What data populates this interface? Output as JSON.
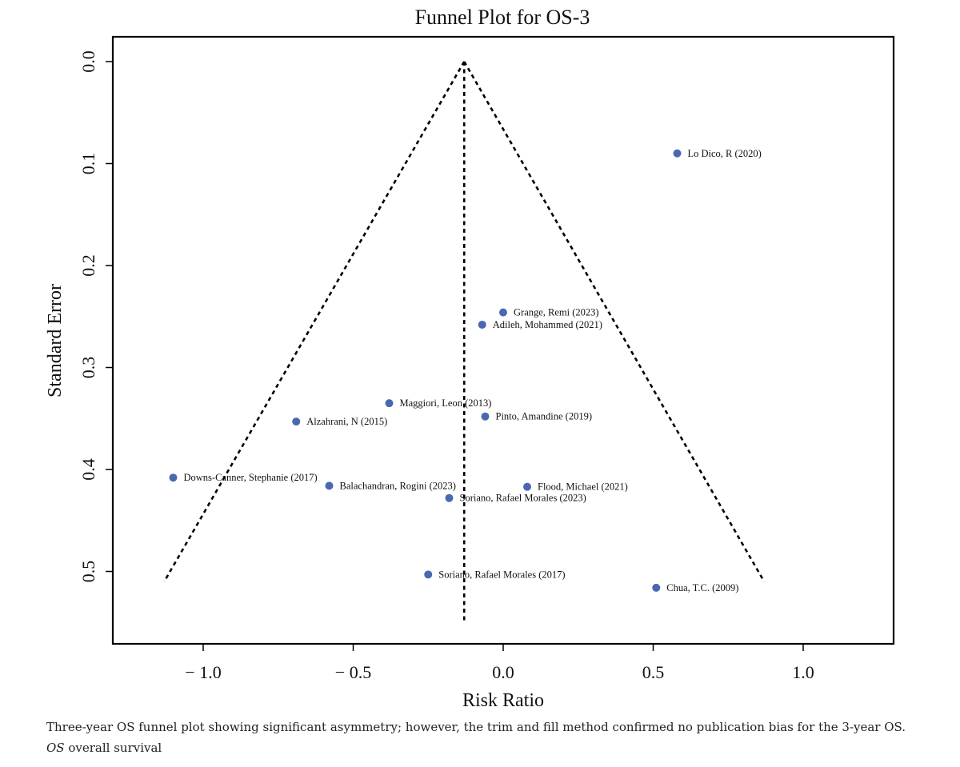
{
  "caption": {
    "text": "Three-year OS funnel plot showing significant asymmetry; however, the trim and fill method confirmed no publication bias for the 3-year OS.",
    "abbr": "OS",
    "abbr_def": "overall survival"
  },
  "chart_data": {
    "type": "scatter",
    "title": "Funnel Plot for OS-3",
    "xlabel": "Risk Ratio",
    "ylabel": "Standard Error",
    "xlim": [
      -1.3,
      1.3
    ],
    "ylim": [
      0.0,
      0.57
    ],
    "y_inverted": true,
    "xticks": [
      -1.0,
      -0.5,
      0.0,
      0.5,
      1.0
    ],
    "xtick_labels": [
      "− 1.0",
      "− 0.5",
      "0.0",
      "0.5",
      "1.0"
    ],
    "yticks": [
      0.0,
      0.1,
      0.2,
      0.3,
      0.4,
      0.5
    ],
    "ytick_labels": [
      "0.0",
      "0.1",
      "0.2",
      "0.3",
      "0.4",
      "0.5"
    ],
    "grid": false,
    "point_color": "#4a68b0",
    "pooled_estimate": -0.13,
    "funnel": {
      "apex": [
        -0.13,
        0.0
      ],
      "left_end": [
        -1.13,
        0.51
      ],
      "right_end": [
        0.87,
        0.51
      ],
      "style": "dotted"
    },
    "points": [
      {
        "label": "Lo Dico, R (2020)",
        "x": 0.58,
        "y": 0.09
      },
      {
        "label": "Grange, Remi (2023)",
        "x": 0.0,
        "y": 0.246
      },
      {
        "label": "Adileh, Mohammed (2021)",
        "x": -0.07,
        "y": 0.258
      },
      {
        "label": "Maggiori, Leon (2013)",
        "x": -0.38,
        "y": 0.335
      },
      {
        "label": "Pinto, Amandine (2019)",
        "x": -0.06,
        "y": 0.348
      },
      {
        "label": "Alzahrani, N (2015)",
        "x": -0.69,
        "y": 0.353
      },
      {
        "label": "Downs-Canner, Stephanie (2017)",
        "x": -1.1,
        "y": 0.408
      },
      {
        "label": "Balachandran, Rogini (2023)",
        "x": -0.58,
        "y": 0.416
      },
      {
        "label": "Flood, Michael (2021)",
        "x": 0.08,
        "y": 0.417
      },
      {
        "label": "Soriano, Rafael Morales (2023)",
        "x": -0.18,
        "y": 0.428
      },
      {
        "label": "Soriano, Rafael Morales (2017)",
        "x": -0.25,
        "y": 0.503
      },
      {
        "label": "Chua, T.C. (2009)",
        "x": 0.51,
        "y": 0.516
      }
    ]
  }
}
